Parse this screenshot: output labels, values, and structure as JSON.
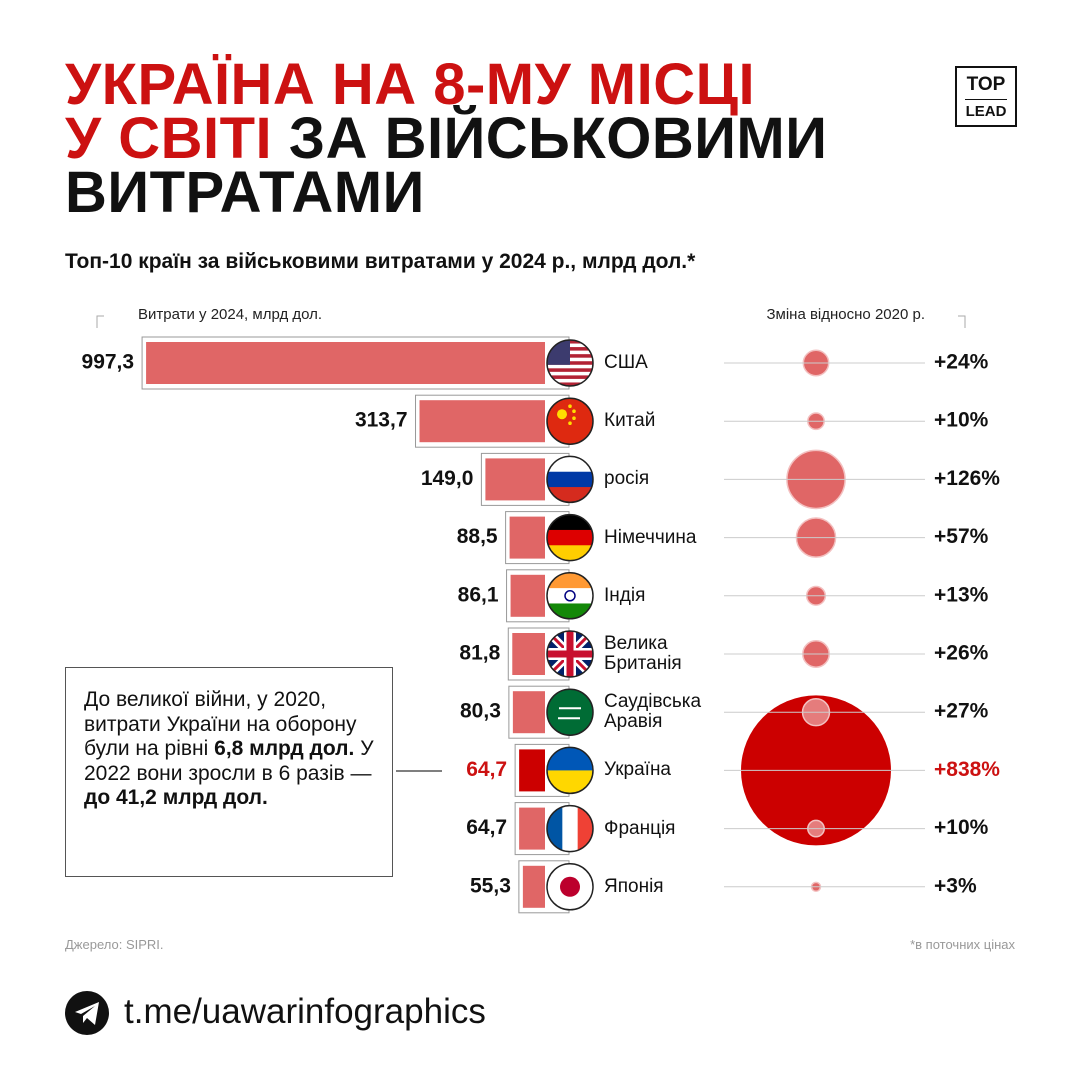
{
  "chart_data": {
    "type": "bar",
    "title_parts": [
      {
        "text": "УКРАЇНА НА 8-МУ МІСЦІ",
        "color": "#cc1111"
      },
      {
        "text": "У СВІТІ",
        "color": "#cc1111"
      },
      {
        "text": "ЗА ВІЙСЬКОВИМИ",
        "color": "#111111"
      },
      {
        "text": "ВИТРАТАМИ",
        "color": "#111111"
      }
    ],
    "subtitle": "Топ-10 країн за військовими витратами у 2024 р., млрд дол.*",
    "categories": [
      "США",
      "Китай",
      "росія",
      "Німеччина",
      "Індія",
      "Велика Британія",
      "Саудівська Аравія",
      "Україна",
      "Франція",
      "Японія"
    ],
    "xlim": [
      0,
      1000
    ],
    "label_colors": [
      "#111111",
      "#111111",
      "#111111",
      "#111111",
      "#111111",
      "#111111",
      "#111111",
      "#cc1111",
      "#111111",
      "#111111"
    ],
    "series": [
      {
        "name": "Витрати у 2024, млрд дол.",
        "values": [
          997.3,
          313.7,
          149.0,
          88.5,
          86.1,
          81.8,
          80.3,
          64.7,
          64.7,
          55.3
        ],
        "value_labels": [
          "997,3",
          "313,7",
          "149,0",
          "88,5",
          "86,1",
          "81,8",
          "80,3",
          "64,7",
          "64,7",
          "55,3"
        ],
        "colors": [
          "#e06666",
          "#e06666",
          "#e06666",
          "#e06666",
          "#e06666",
          "#e06666",
          "#e06666",
          "#cc0000",
          "#e06666",
          "#e06666"
        ]
      },
      {
        "name": "Зміна відносно 2020 р.",
        "values": [
          24,
          10,
          126,
          57,
          13,
          26,
          27,
          838,
          10,
          3
        ],
        "value_labels": [
          "+24%",
          "+10%",
          "+126%",
          "+57%",
          "+13%",
          "+26%",
          "+27%",
          "+838%",
          "+10%",
          "+3%"
        ],
        "colors": [
          "#e06666",
          "#e06666",
          "#e06666",
          "#e06666",
          "#e06666",
          "#e06666",
          "#e57c7c",
          "#cc0000",
          "#e57c7c",
          "#e06666"
        ]
      }
    ],
    "annotation": [
      {
        "text": "До великої війни, у 2020, витрати України на оборону були на рівні",
        "bold": false
      },
      {
        "text": "6,8 млрд дол.",
        "bold": true
      },
      {
        "text": "У 2022 вони зросли в 6 разів —",
        "bold": false
      },
      {
        "text": "до 41,2 млрд дол.",
        "bold": true
      }
    ],
    "source": "Джерело: SIPRI.",
    "footnote": "*в поточних цінах"
  },
  "logo": {
    "top": "TOP",
    "bottom": "LEAD"
  },
  "footer": {
    "link": "t.me/uawarinfographics"
  }
}
